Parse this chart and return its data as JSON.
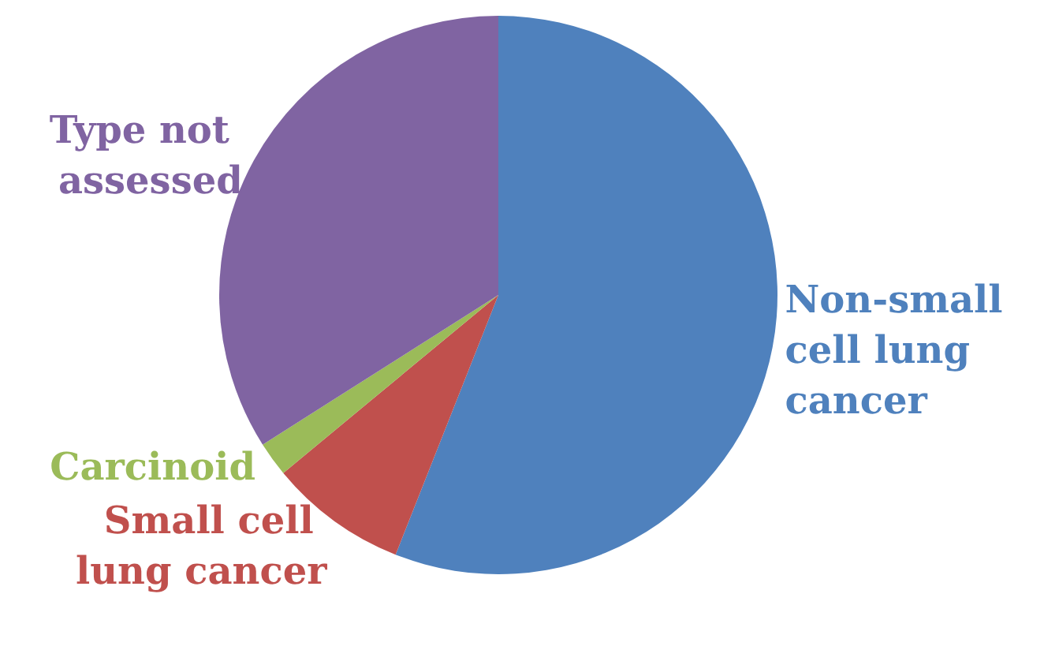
{
  "chart_data": {
    "type": "pie",
    "categories": [
      "Non-small cell lung cancer",
      "Small cell lung cancer",
      "Carcinoid",
      "Type not assessed"
    ],
    "values": [
      56,
      8,
      2,
      34
    ],
    "colors": [
      "#4f81bd",
      "#c0504d",
      "#9bbb59",
      "#8064a2"
    ],
    "legend": false
  }
}
